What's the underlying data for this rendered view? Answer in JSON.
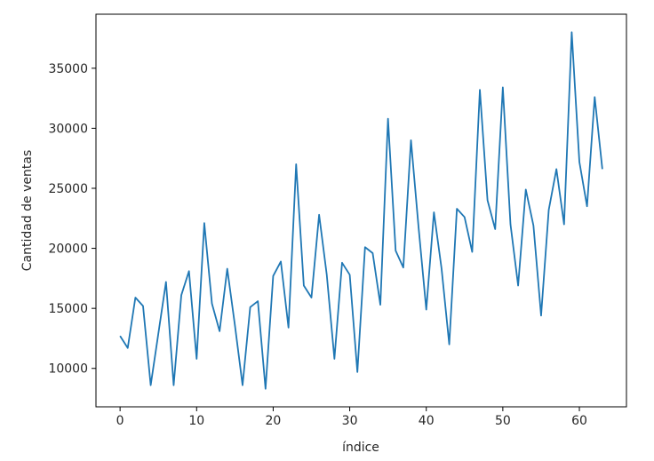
{
  "chart_data": {
    "type": "line",
    "title": "",
    "xlabel": "índice",
    "ylabel": "Cantidad de ventas",
    "xlim": [
      -3.15,
      66.15
    ],
    "ylim": [
      6800,
      39500
    ],
    "grid": false,
    "xticks": [
      0,
      10,
      20,
      30,
      40,
      50,
      60
    ],
    "yticks": [
      10000,
      15000,
      20000,
      25000,
      30000,
      35000
    ],
    "series": [
      {
        "color": "#1f77b4",
        "x": [
          0,
          1,
          2,
          3,
          4,
          5,
          6,
          7,
          8,
          9,
          10,
          11,
          12,
          13,
          14,
          15,
          16,
          17,
          18,
          19,
          20,
          21,
          22,
          23,
          24,
          25,
          26,
          27,
          28,
          29,
          30,
          31,
          32,
          33,
          34,
          35,
          36,
          37,
          38,
          39,
          40,
          41,
          42,
          43,
          44,
          45,
          46,
          47,
          48,
          49,
          50,
          51,
          52,
          53,
          54,
          55,
          56,
          57,
          58,
          59,
          60,
          61,
          62,
          63
        ],
        "values": [
          12700,
          11700,
          15900,
          15200,
          8600,
          12900,
          17200,
          8600,
          16100,
          18100,
          10800,
          22100,
          15400,
          13100,
          18300,
          13600,
          8600,
          15100,
          15600,
          8300,
          17700,
          18900,
          13400,
          27000,
          16900,
          15900,
          22800,
          17800,
          10800,
          18800,
          17800,
          9700,
          20100,
          19600,
          15300,
          30800,
          19800,
          18400,
          29000,
          21700,
          14900,
          23000,
          18300,
          12000,
          23300,
          22600,
          19700,
          33200,
          24000,
          21600,
          33400,
          22000,
          16900,
          24900,
          21900,
          14400,
          23200,
          26600,
          22000,
          38000,
          27200,
          23500,
          32600,
          26600
        ]
      }
    ]
  }
}
